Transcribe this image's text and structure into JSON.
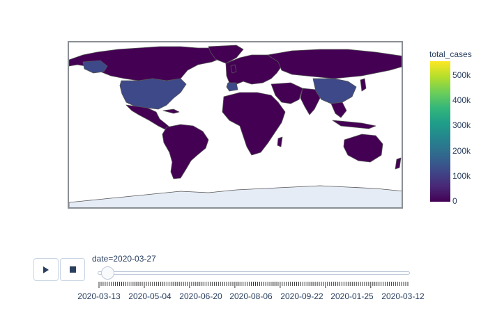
{
  "colorbar": {
    "title": "total_cases",
    "ticks": [
      "500k",
      "400k",
      "300k",
      "200k",
      "100k",
      "0"
    ],
    "range": [
      0,
      550000
    ],
    "colorscale": "Viridis"
  },
  "slider": {
    "current_label": "date=2020-03-27",
    "current_value": "2020-03-27",
    "tick_labels": [
      "2020-03-13",
      "2020-05-04",
      "2020-06-20",
      "2020-08-06",
      "2020-09-22",
      "2020-01-25",
      "2020-03-12"
    ]
  },
  "controls": {
    "play_icon": "play-icon",
    "stop_icon": "stop-icon"
  },
  "map": {
    "land_color": "#440154",
    "highlight_colors": {
      "United States": "#3e4989",
      "China": "#3e4989",
      "Italy": "#3e4989",
      "Spain": "#3e4989",
      "Canada": "#46337e",
      "Russia": "#46337e"
    },
    "antarctica_color": "#e5ecf6",
    "border_color": "#666666"
  }
}
